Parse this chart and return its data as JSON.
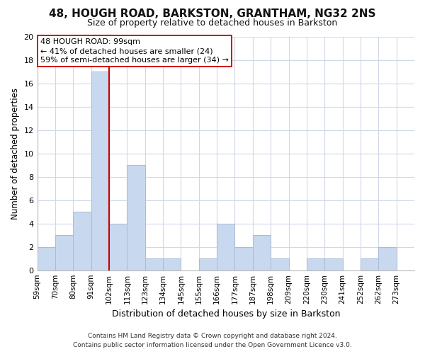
{
  "title": "48, HOUGH ROAD, BARKSTON, GRANTHAM, NG32 2NS",
  "subtitle": "Size of property relative to detached houses in Barkston",
  "xlabel": "Distribution of detached houses by size in Barkston",
  "ylabel": "Number of detached properties",
  "bin_labels": [
    "59sqm",
    "70sqm",
    "80sqm",
    "91sqm",
    "102sqm",
    "113sqm",
    "123sqm",
    "134sqm",
    "145sqm",
    "155sqm",
    "166sqm",
    "177sqm",
    "187sqm",
    "198sqm",
    "209sqm",
    "220sqm",
    "230sqm",
    "241sqm",
    "252sqm",
    "262sqm",
    "273sqm"
  ],
  "bar_heights": [
    2,
    3,
    5,
    17,
    4,
    9,
    1,
    1,
    0,
    1,
    4,
    2,
    3,
    1,
    0,
    1,
    1,
    0,
    1,
    2,
    0
  ],
  "bar_color": "#c8d8ee",
  "bar_edge_color": "#aabbd8",
  "vline_x_index": 4,
  "vline_color": "#cc0000",
  "annotation_line1": "48 HOUGH ROAD: 99sqm",
  "annotation_line2": "← 41% of detached houses are smaller (24)",
  "annotation_line3": "59% of semi-detached houses are larger (34) →",
  "annotation_box_color": "#ffffff",
  "annotation_box_edge": "#cc0000",
  "ylim": [
    0,
    20
  ],
  "yticks": [
    0,
    2,
    4,
    6,
    8,
    10,
    12,
    14,
    16,
    18,
    20
  ],
  "grid_color": "#d0d8e8",
  "footer_line1": "Contains HM Land Registry data © Crown copyright and database right 2024.",
  "footer_line2": "Contains public sector information licensed under the Open Government Licence v3.0.",
  "bg_color": "#ffffff",
  "title_fontsize": 11,
  "subtitle_fontsize": 9
}
